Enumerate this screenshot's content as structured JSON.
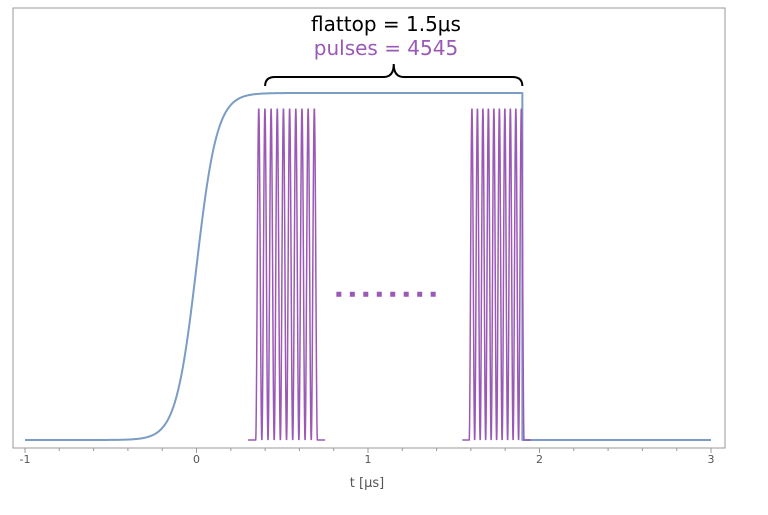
{
  "chart_data": {
    "type": "line",
    "xlabel": "t [μs]",
    "xlim": [
      -1,
      3
    ],
    "ylim": [
      0,
      1.0
    ],
    "x_ticks": [
      "-1",
      "0",
      "1",
      "2",
      "3"
    ],
    "annotations": {
      "flattop_label": "flattop = 1.5μs",
      "pulses_label": "pulses = 4545"
    },
    "series": [
      {
        "kind": "envelope",
        "color": "#7b9cc4",
        "rise_center": 0.0,
        "rise_width": 0.12,
        "flat_start": 0.4,
        "flat_end": 1.9,
        "baseline": 0.0,
        "level": 1.0
      },
      {
        "kind": "pulse_train",
        "color": "#9b59b6",
        "groups": [
          {
            "x_start": 0.3,
            "x_end": 0.75,
            "pulses": 10
          },
          {
            "x_start": 1.55,
            "x_end": 1.95,
            "pulses": 10
          }
        ],
        "level": 0.955
      }
    ],
    "ellipsis": {
      "x_start": 0.83,
      "x_end": 1.38,
      "y": 0.42,
      "color": "#9b59b6"
    },
    "brace": {
      "x_start": 0.4,
      "x_end": 1.9
    }
  }
}
